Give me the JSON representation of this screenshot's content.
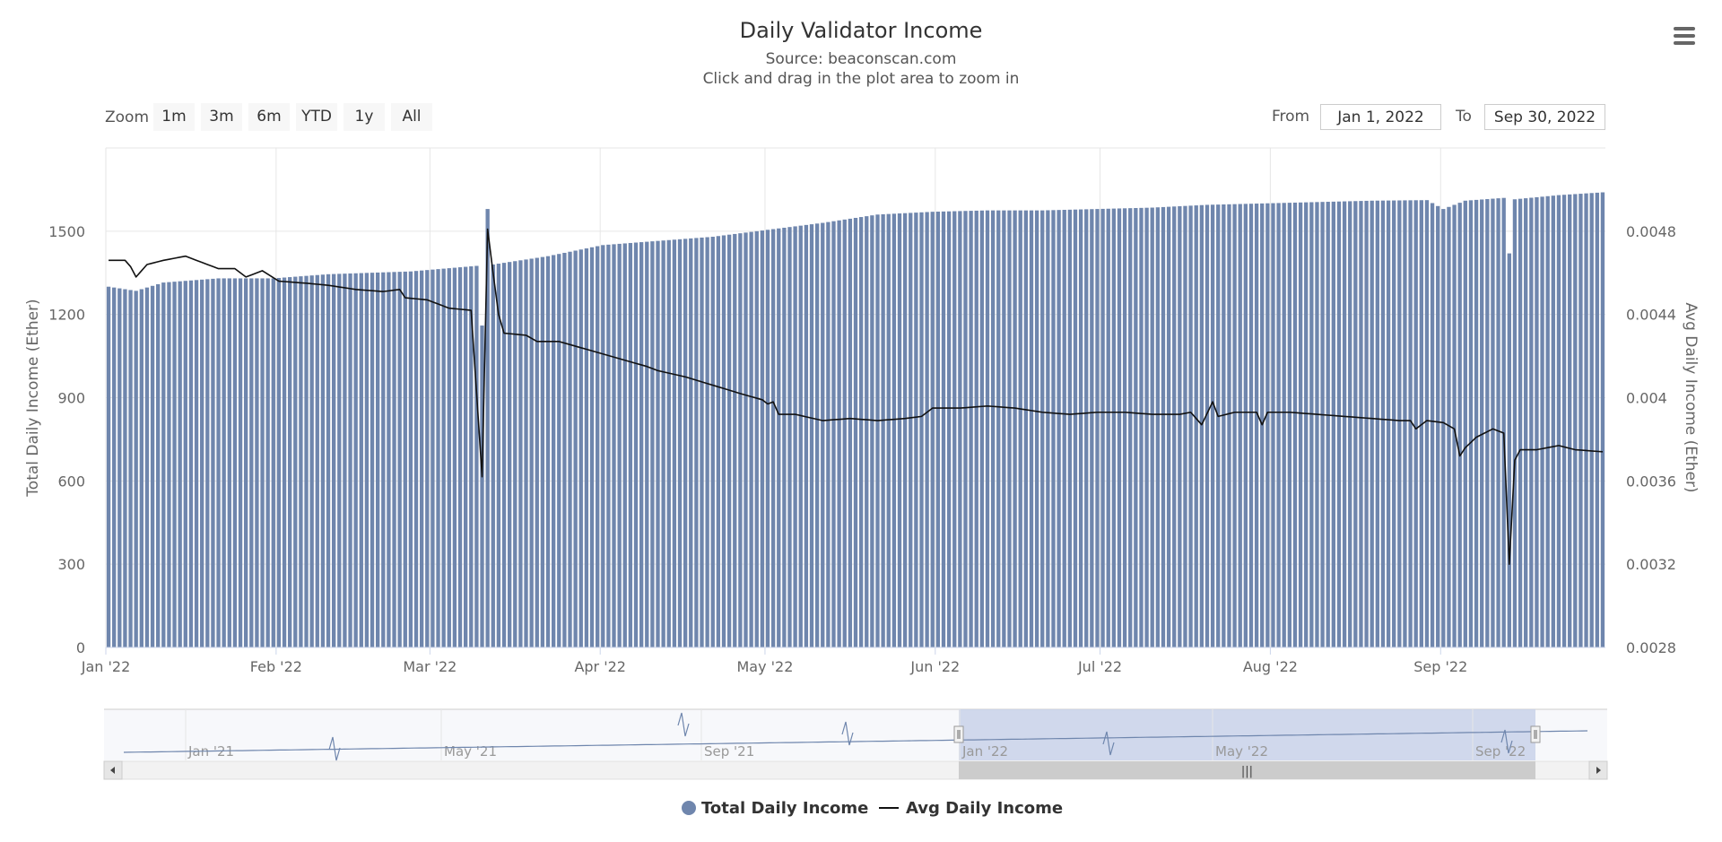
{
  "menu_icon": "hamburger-menu-icon",
  "colors": {
    "bar": "#6f86ad",
    "line": "#111111",
    "navigator_fill": "#c6d0e8",
    "navigator_line": "#6f86ad"
  },
  "range_selector": {
    "zoom_label": "Zoom",
    "buttons": [
      "1m",
      "3m",
      "6m",
      "YTD",
      "1y",
      "All"
    ],
    "from_label": "From",
    "from_value": "Jan 1, 2022",
    "to_label": "To",
    "to_value": "Sep 30, 2022"
  },
  "navigator": {
    "labels": [
      "Jan '21",
      "May '21",
      "Sep '21",
      "Jan '22",
      "May '22",
      "Sep '22"
    ],
    "selected_from": "Jan 1, 2022",
    "selected_to": "Sep 30, 2022"
  },
  "chart_data": {
    "type": "bar",
    "title": "Daily Validator Income",
    "subtitle": "Source: beaconscan.com",
    "instruction": "Click and drag in the plot area to zoom in",
    "x_start": "2022-01-01",
    "x_end": "2022-09-30",
    "xticks": [
      "Jan '22",
      "Feb '22",
      "Mar '22",
      "Apr '22",
      "May '22",
      "Jun '22",
      "Jul '22",
      "Aug '22",
      "Sep '22"
    ],
    "ylabel_left": "Total Daily Income (Ether)",
    "ylabel_right": "Avg Daily Income (Ether)",
    "yticks_left": [
      "0",
      "300",
      "600",
      "900",
      "1200",
      "1500"
    ],
    "yticks_right": [
      "0.0028",
      "0.0032",
      "0.0036",
      "0.004",
      "0.0044",
      "0.0048"
    ],
    "ylim_left": [
      0,
      1800
    ],
    "ylim_right": [
      0.0028,
      0.0052
    ],
    "series": [
      {
        "name": "Total Daily Income",
        "type": "column",
        "axis": "left",
        "anchors": [
          [
            0,
            1300
          ],
          [
            5,
            1285
          ],
          [
            10,
            1315
          ],
          [
            20,
            1330
          ],
          [
            30,
            1330
          ],
          [
            40,
            1345
          ],
          [
            55,
            1355
          ],
          [
            67,
            1375
          ],
          [
            68,
            1160
          ],
          [
            69,
            1580
          ],
          [
            70,
            1380
          ],
          [
            80,
            1410
          ],
          [
            90,
            1450
          ],
          [
            100,
            1465
          ],
          [
            110,
            1480
          ],
          [
            120,
            1505
          ],
          [
            130,
            1530
          ],
          [
            140,
            1560
          ],
          [
            150,
            1570
          ],
          [
            160,
            1575
          ],
          [
            170,
            1575
          ],
          [
            180,
            1580
          ],
          [
            190,
            1585
          ],
          [
            200,
            1595
          ],
          [
            210,
            1600
          ],
          [
            220,
            1605
          ],
          [
            230,
            1610
          ],
          [
            240,
            1612
          ],
          [
            243,
            1580
          ],
          [
            247,
            1610
          ],
          [
            254,
            1620
          ],
          [
            255,
            1420
          ],
          [
            256,
            1615
          ],
          [
            264,
            1630
          ],
          [
            272,
            1640
          ]
        ]
      },
      {
        "name": "Avg Daily Income",
        "type": "line",
        "axis": "right",
        "anchors": [
          [
            0,
            0.00466
          ],
          [
            3,
            0.00466
          ],
          [
            4,
            0.00463
          ],
          [
            5,
            0.00458
          ],
          [
            7,
            0.00464
          ],
          [
            10,
            0.00466
          ],
          [
            14,
            0.00468
          ],
          [
            17,
            0.00465
          ],
          [
            20,
            0.00462
          ],
          [
            23,
            0.00462
          ],
          [
            25,
            0.00458
          ],
          [
            28,
            0.00461
          ],
          [
            31,
            0.00456
          ],
          [
            36,
            0.00455
          ],
          [
            40,
            0.00454
          ],
          [
            45,
            0.00452
          ],
          [
            50,
            0.00451
          ],
          [
            53,
            0.00452
          ],
          [
            54,
            0.00448
          ],
          [
            58,
            0.00447
          ],
          [
            62,
            0.00443
          ],
          [
            66,
            0.00442
          ],
          [
            68,
            0.00362
          ],
          [
            69,
            0.00481
          ],
          [
            70,
            0.0046
          ],
          [
            71,
            0.0044
          ],
          [
            72,
            0.00431
          ],
          [
            76,
            0.0043
          ],
          [
            78,
            0.00427
          ],
          [
            82,
            0.00427
          ],
          [
            86,
            0.00424
          ],
          [
            90,
            0.00421
          ],
          [
            94,
            0.00418
          ],
          [
            98,
            0.00415
          ],
          [
            100,
            0.00413
          ],
          [
            105,
            0.0041
          ],
          [
            110,
            0.00406
          ],
          [
            115,
            0.00402
          ],
          [
            119,
            0.00399
          ],
          [
            120,
            0.00397
          ],
          [
            121,
            0.00398
          ],
          [
            122,
            0.00392
          ],
          [
            125,
            0.00392
          ],
          [
            130,
            0.00389
          ],
          [
            135,
            0.0039
          ],
          [
            140,
            0.00389
          ],
          [
            145,
            0.0039
          ],
          [
            148,
            0.00391
          ],
          [
            150,
            0.00395
          ],
          [
            155,
            0.00395
          ],
          [
            160,
            0.00396
          ],
          [
            165,
            0.00395
          ],
          [
            170,
            0.00393
          ],
          [
            175,
            0.00392
          ],
          [
            180,
            0.00393
          ],
          [
            185,
            0.00393
          ],
          [
            190,
            0.00392
          ],
          [
            195,
            0.00392
          ],
          [
            197,
            0.00393
          ],
          [
            199,
            0.00387
          ],
          [
            201,
            0.00398
          ],
          [
            202,
            0.00391
          ],
          [
            205,
            0.00393
          ],
          [
            208,
            0.00393
          ],
          [
            209,
            0.00393
          ],
          [
            210,
            0.00387
          ],
          [
            211,
            0.00393
          ],
          [
            215,
            0.00393
          ],
          [
            220,
            0.00392
          ],
          [
            225,
            0.00391
          ],
          [
            230,
            0.0039
          ],
          [
            235,
            0.00389
          ],
          [
            237,
            0.00389
          ],
          [
            238,
            0.00385
          ],
          [
            240,
            0.00389
          ],
          [
            243,
            0.00388
          ],
          [
            245,
            0.00385
          ],
          [
            246,
            0.00372
          ],
          [
            247,
            0.00376
          ],
          [
            249,
            0.00381
          ],
          [
            252,
            0.00385
          ],
          [
            254,
            0.00383
          ],
          [
            255,
            0.0032
          ],
          [
            256,
            0.0037
          ],
          [
            257,
            0.00375
          ],
          [
            260,
            0.00375
          ],
          [
            264,
            0.00377
          ],
          [
            267,
            0.00375
          ],
          [
            272,
            0.00374
          ]
        ]
      }
    ]
  },
  "legend": [
    "Total Daily Income",
    "Avg Daily Income"
  ]
}
